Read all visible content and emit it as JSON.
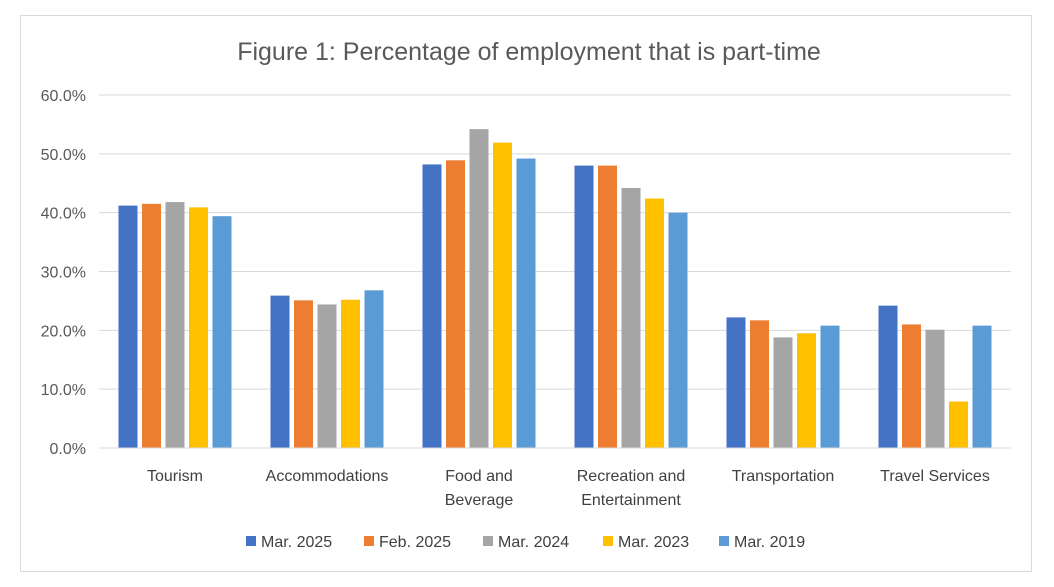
{
  "chart_data": {
    "type": "bar",
    "title": "Figure 1: Percentage of employment that is part-time",
    "categories": [
      [
        "Tourism"
      ],
      [
        "Accommodations"
      ],
      [
        "Food and",
        "Beverage"
      ],
      [
        "Recreation and",
        "Entertainment"
      ],
      [
        "Transportation"
      ],
      [
        "Travel Services"
      ]
    ],
    "series": [
      {
        "name": "Mar. 2025",
        "color": "#4472c4",
        "values": [
          41.2,
          25.9,
          48.2,
          48.0,
          22.2,
          24.2
        ]
      },
      {
        "name": "Feb. 2025",
        "color": "#ed7d31",
        "values": [
          41.5,
          25.1,
          48.9,
          48.0,
          21.7,
          21.0
        ]
      },
      {
        "name": "Mar. 2024",
        "color": "#a5a5a5",
        "values": [
          41.8,
          24.4,
          54.2,
          44.2,
          18.8,
          20.1
        ]
      },
      {
        "name": "Mar. 2023",
        "color": "#ffc000",
        "values": [
          40.9,
          25.2,
          51.9,
          42.4,
          19.5,
          7.9
        ]
      },
      {
        "name": "Mar. 2019",
        "color": "#5b9bd5",
        "values": [
          39.4,
          26.8,
          49.2,
          40.0,
          20.8,
          20.8
        ]
      }
    ],
    "yticks": [
      "0.0%",
      "10.0%",
      "20.0%",
      "30.0%",
      "40.0%",
      "50.0%",
      "60.0%"
    ],
    "ylim": [
      0,
      60
    ],
    "grid": true,
    "legend_position": "bottom",
    "xlabel": "",
    "ylabel": ""
  }
}
